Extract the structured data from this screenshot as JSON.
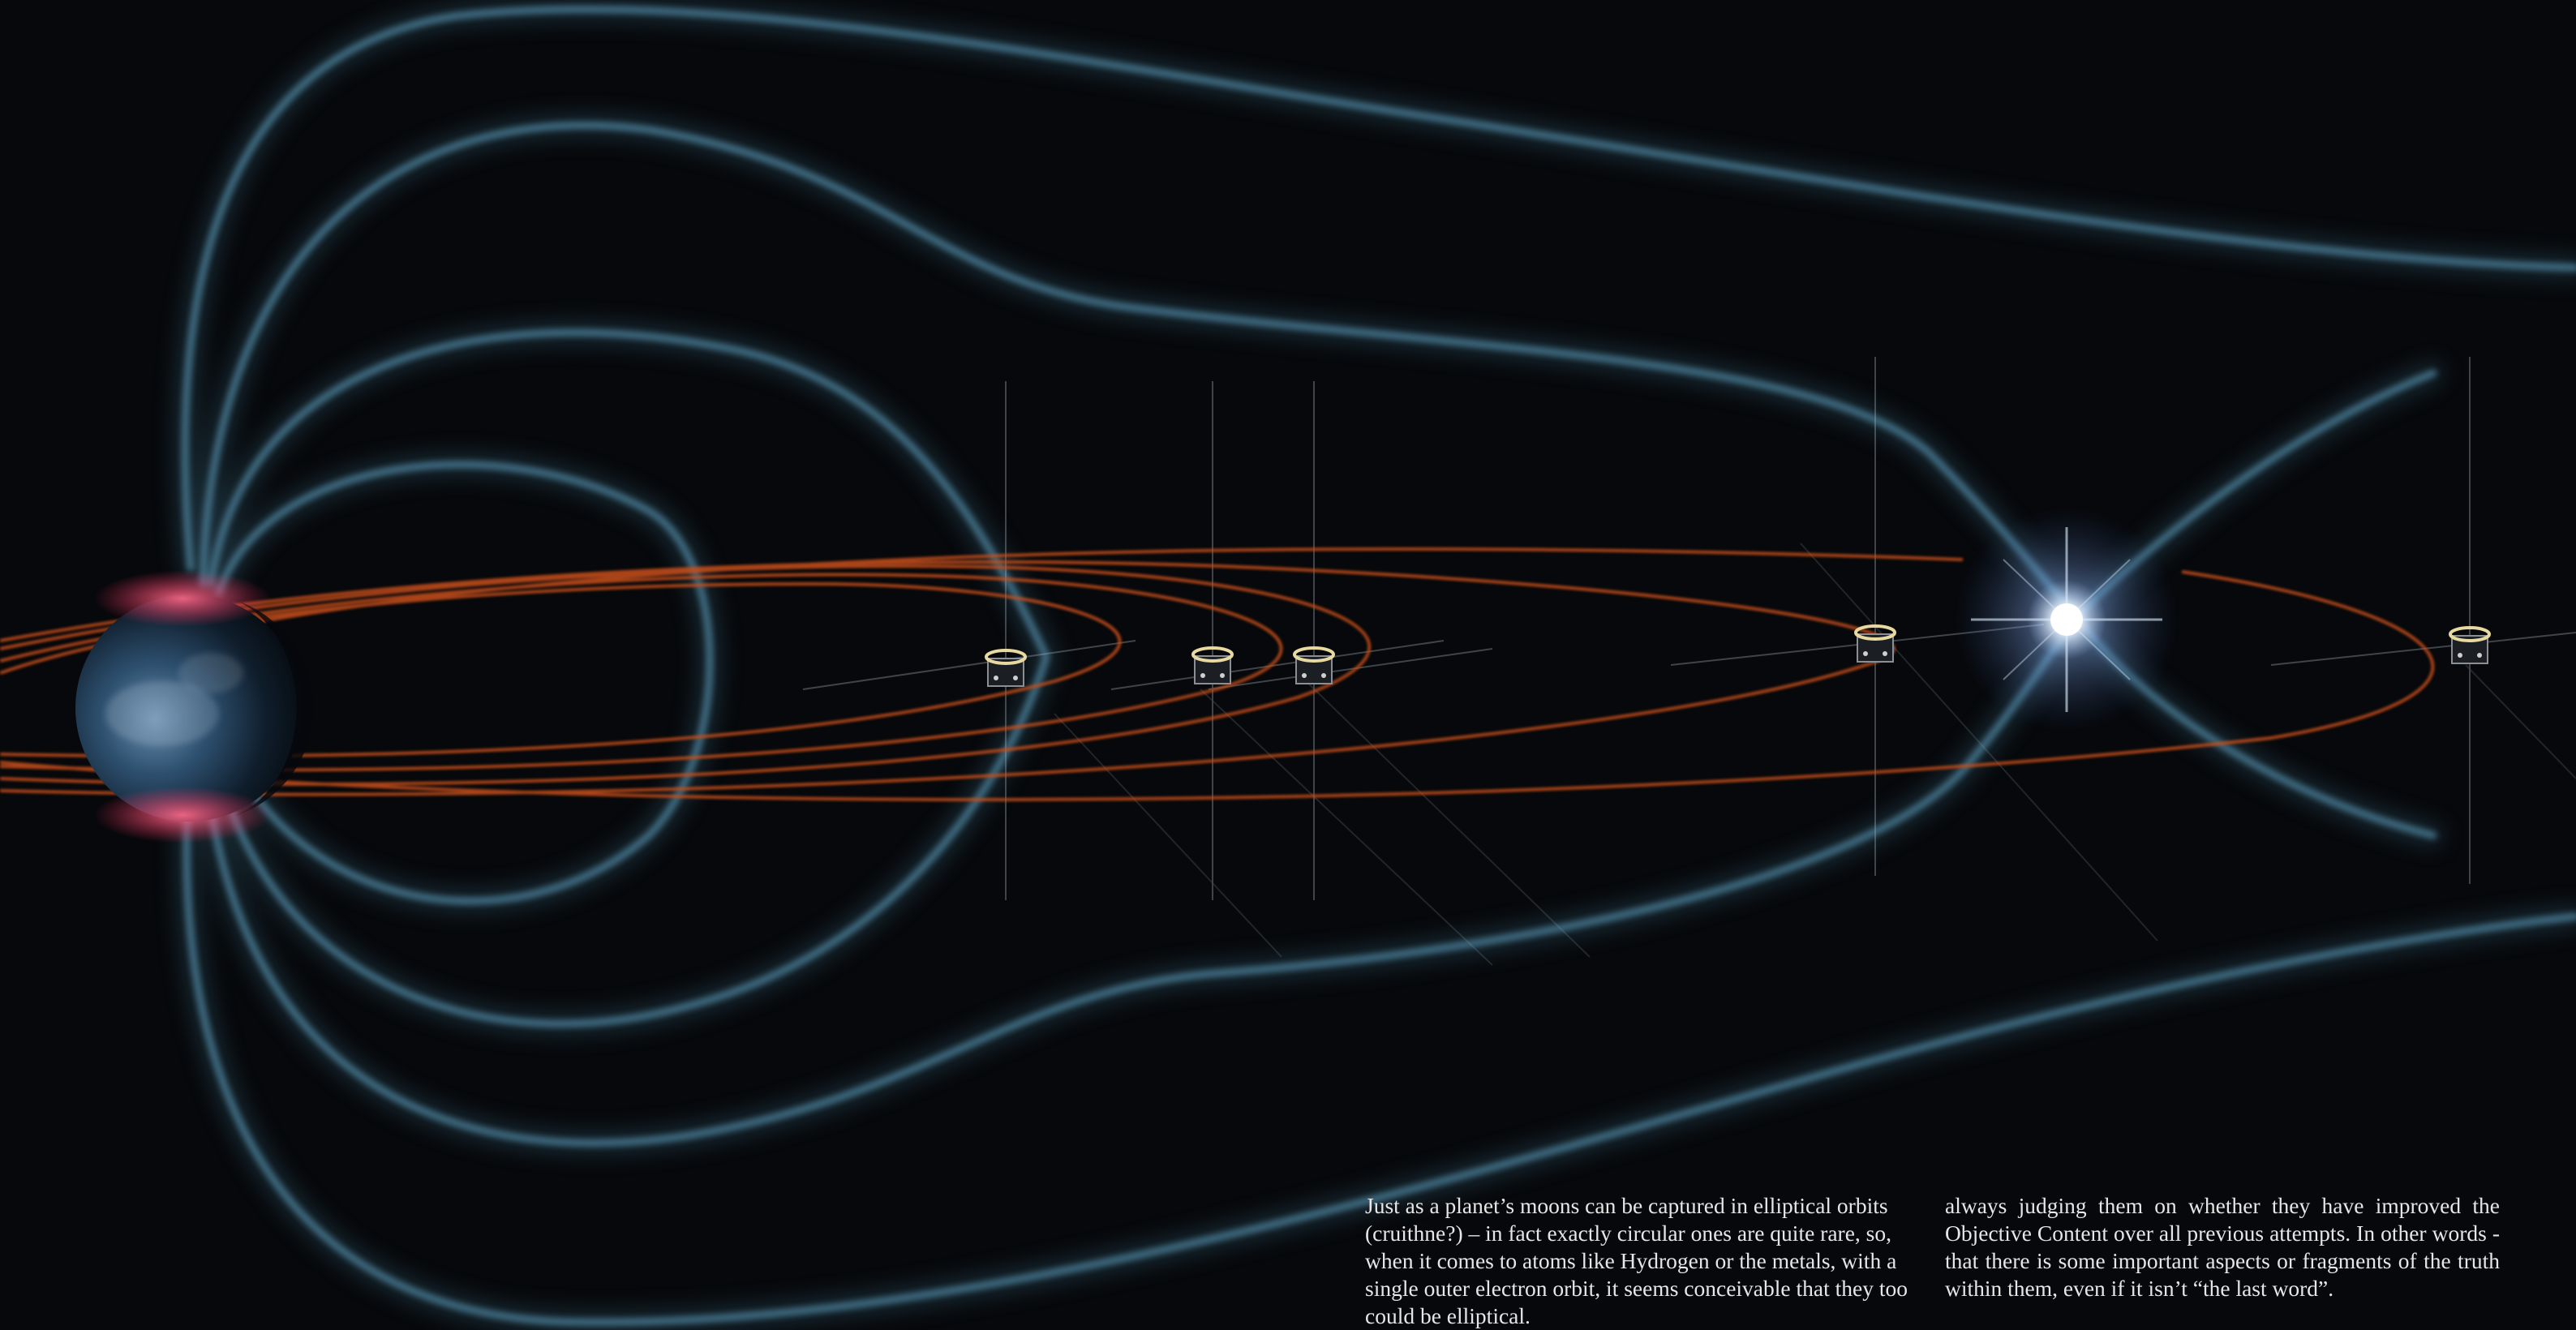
{
  "colors": {
    "background": "#06080b",
    "field_lines": "#3f6f85",
    "orbits": "#c8501e",
    "text": "#e6e6e6",
    "sun_glow": "#cfe6ff"
  },
  "caption": {
    "left_column": "Just as a planet’s moons can be captured in elliptical orbits (cruithne?) – in fact exactly circular ones are quite rare, so, when it comes to atoms like Hydrogen or the metals, with a single outer electron orbit, it seems conceivable that they too could be elliptical.",
    "right_column": "always judging them on whether they have improved the Objective Content over all previous attempts. In other words - that there is some important aspects or fragments of the truth within them, even if it isn’t “the last word”."
  }
}
